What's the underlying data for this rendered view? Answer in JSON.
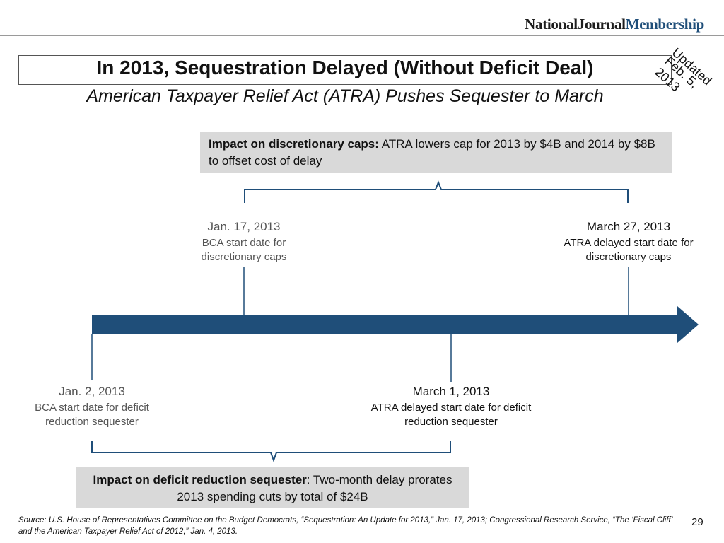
{
  "header": {
    "brand_part1": "NationalJournal",
    "brand_part2": "Membership",
    "title": "In 2013, Sequestration Delayed (Without Deficit Deal)",
    "subtitle": "American Taxpayer Relief Act (ATRA) Pushes Sequester to March",
    "stamp_line1": "Updated",
    "stamp_line2": "Feb. 5, 2013"
  },
  "top_box": {
    "label": "Impact on discretionary caps:",
    "text": " ATRA lowers cap for 2013 by $4B and 2014 by $8B to offset cost of delay"
  },
  "bottom_box": {
    "label": "Impact on deficit reduction sequester",
    "text": ": Two-month delay prorates 2013 spending cuts by total of $24B"
  },
  "events": {
    "jan17": {
      "date": "Jan. 17, 2013",
      "desc_line1": "BCA start date for",
      "desc_line2": "discretionary caps"
    },
    "mar27": {
      "date": "March 27, 2013",
      "desc_line1": "ATRA delayed start date for",
      "desc_line2": "discretionary caps"
    },
    "jan2": {
      "date": "Jan. 2, 2013",
      "desc_line1": "BCA start date for deficit",
      "desc_line2": "reduction sequester"
    },
    "mar1": {
      "date": "March 1, 2013",
      "desc_line1": "ATRA delayed start date for deficit",
      "desc_line2": "reduction sequester"
    }
  },
  "footer": {
    "source_line1": "Source: U.S. House of Representatives Committee on the Budget Democrats, “Sequestration: An Update for 2013,” Jan. 17, 2013; Congressional Research Service, “The ‘Fiscal Cliff’",
    "source_line2": "and the American Taxpayer Relief Act of 2012,” Jan. 4, 2013.",
    "page_number": "29"
  },
  "colors": {
    "arrow": "#1f4e79",
    "box": "#d9d9d9",
    "connector": "#1f4e79"
  }
}
